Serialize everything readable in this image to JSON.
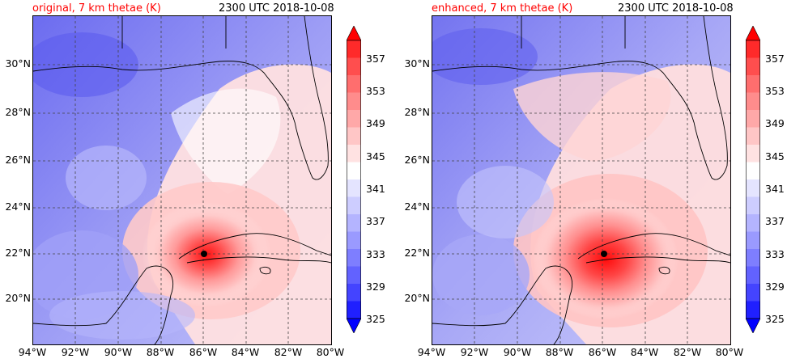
{
  "panels": [
    {
      "title": "original, 7 km thetae (K)",
      "time": "2300 UTC 2018-10-08"
    },
    {
      "title": "enhanced, 7 km thetae (K)",
      "time": "2300 UTC 2018-10-08"
    }
  ],
  "lat_ticks": [
    "30°N",
    "28°N",
    "26°N",
    "24°N",
    "22°N",
    "20°N"
  ],
  "lon_ticks": [
    "94°W",
    "92°W",
    "90°W",
    "88°W",
    "86°W",
    "84°W",
    "82°W",
    "80°W"
  ],
  "colorbar": {
    "ticks": [
      "357",
      "353",
      "349",
      "345",
      "341",
      "337",
      "333",
      "329",
      "325"
    ],
    "levels": [
      325,
      327,
      329,
      331,
      333,
      335,
      337,
      339,
      341,
      343,
      345,
      347,
      349,
      351,
      353,
      355,
      357,
      359
    ],
    "colors": [
      "#0000ff",
      "#2020ff",
      "#4444ff",
      "#6262ff",
      "#7e7eff",
      "#9a9aff",
      "#b4b4ff",
      "#cdcdff",
      "#e4e4ff",
      "#ffffff",
      "#ffe2e2",
      "#ffc6c6",
      "#ffa8a8",
      "#ff8c8c",
      "#ff6e6e",
      "#ff4e4e",
      "#ff2a2a",
      "#ff0000"
    ],
    "extend": "both"
  },
  "storm_center": {
    "lon": -86.0,
    "lat": 22.0,
    "marker": "black dot"
  },
  "map_extent": {
    "lon": [
      -94,
      -80
    ],
    "lat": [
      18.2,
      32.0
    ]
  }
}
